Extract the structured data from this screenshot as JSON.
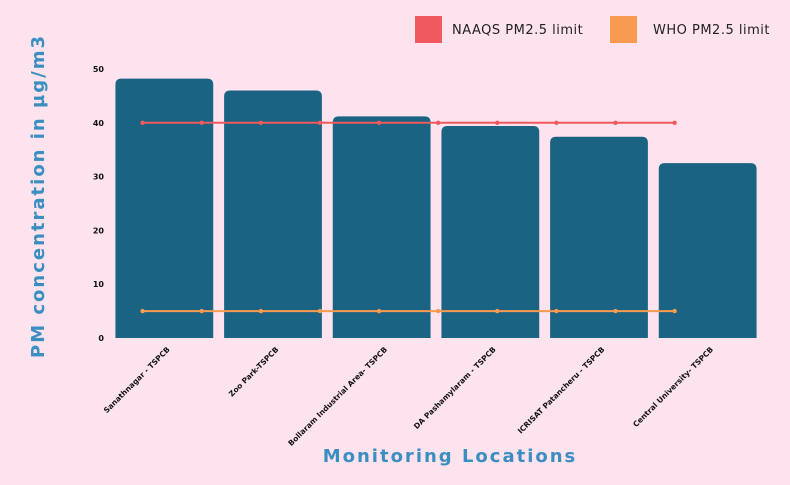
{
  "chart_data": {
    "type": "bar",
    "xlabel": "Monitoring Locations",
    "ylabel": "PM concentration in µg/m3",
    "ylim": [
      0,
      50
    ],
    "yticks": [
      0,
      10,
      20,
      30,
      40,
      50
    ],
    "categories": [
      "Sanathnagar - TSPCB",
      "Zoo Park-TSPCB",
      "Bollaram Industrial Area- TSPCB",
      "DA Pashamylaram - TSPCB",
      "ICRISAT Patancheru - TSPCB",
      "Central University- TSPCB"
    ],
    "values": [
      48.2,
      46.0,
      41.2,
      39.4,
      37.4,
      32.5
    ],
    "bar_color": "#1b6382",
    "reference_lines": [
      {
        "name": "NAAQS PM2.5 limit",
        "value": 40,
        "color": "#f05a5f"
      },
      {
        "name": "WHO PM2.5 limit",
        "value": 5,
        "color": "#f89a50"
      }
    ],
    "legend_position": "top-right",
    "grid": false
  }
}
